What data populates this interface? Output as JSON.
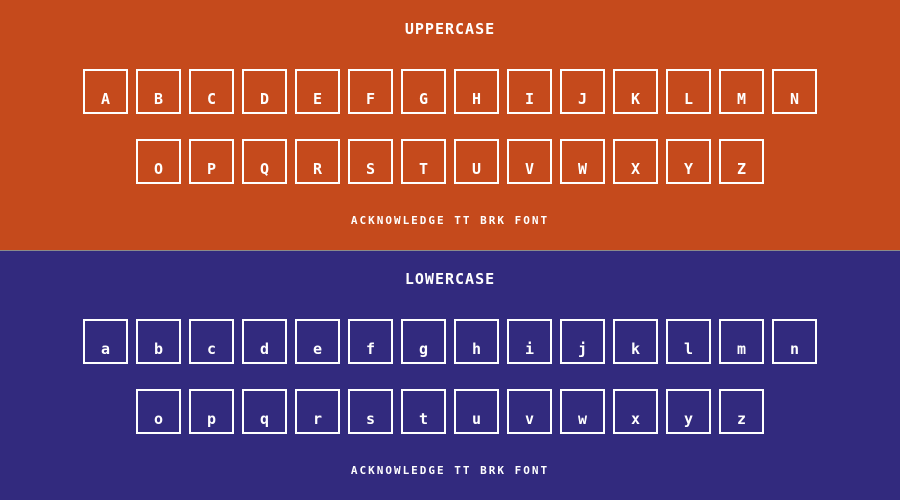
{
  "colors": {
    "upper_bg": "#C54A1C",
    "lower_bg": "#322A7E",
    "divider": "#8A8A8A",
    "glyph": "#FFFFFF"
  },
  "upper": {
    "title": "UPPERCASE",
    "row1": [
      "A",
      "B",
      "C",
      "D",
      "E",
      "F",
      "G",
      "H",
      "I",
      "J",
      "K",
      "L",
      "M",
      "N"
    ],
    "row2": [
      "O",
      "P",
      "Q",
      "R",
      "S",
      "T",
      "U",
      "V",
      "W",
      "X",
      "Y",
      "Z"
    ],
    "footer": "ACKNOWLEDGE TT BRK FONT"
  },
  "lower": {
    "title": "LOWERCASE",
    "row1": [
      "a",
      "b",
      "c",
      "d",
      "e",
      "f",
      "g",
      "h",
      "i",
      "j",
      "k",
      "l",
      "m",
      "n"
    ],
    "row2": [
      "o",
      "p",
      "q",
      "r",
      "s",
      "t",
      "u",
      "v",
      "w",
      "x",
      "y",
      "z"
    ],
    "footer": "ACKNOWLEDGE TT BRK FONT"
  }
}
